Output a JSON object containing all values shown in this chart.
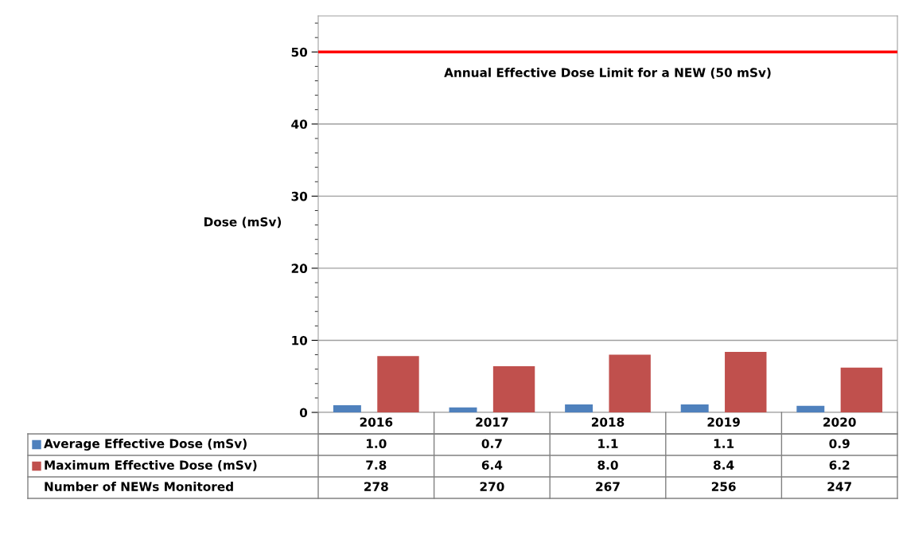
{
  "chart_data": {
    "type": "bar",
    "categories": [
      "2016",
      "2017",
      "2018",
      "2019",
      "2020"
    ],
    "series": [
      {
        "name": "Average Effective Dose (mSv)",
        "color": "#4f81bd",
        "values": [
          1.0,
          0.7,
          1.1,
          1.1,
          0.9
        ],
        "value_labels": [
          "1.0",
          "0.7",
          "1.1",
          "1.1",
          "0.9"
        ]
      },
      {
        "name": "Maximum Effective Dose (mSv)",
        "color": "#c0504d",
        "values": [
          7.8,
          6.4,
          8.0,
          8.4,
          6.2
        ],
        "value_labels": [
          "7.8",
          "6.4",
          "8.0",
          "8.4",
          "6.2"
        ]
      }
    ],
    "ylabel": "Dose (mSv)",
    "ylim": [
      0,
      55
    ],
    "yticks": [
      0,
      10,
      20,
      30,
      40,
      50
    ],
    "grid": "y",
    "legend": "bottom",
    "ref_lines": [
      {
        "axis": "y",
        "value": 50,
        "label": "Annual Effective Dose Limit for a NEW (50 mSv)",
        "color": "#ff0000"
      }
    ],
    "annotations": [
      "Number of NEWs Monitored",
      "278",
      "270",
      "267",
      "256",
      "247"
    ]
  }
}
